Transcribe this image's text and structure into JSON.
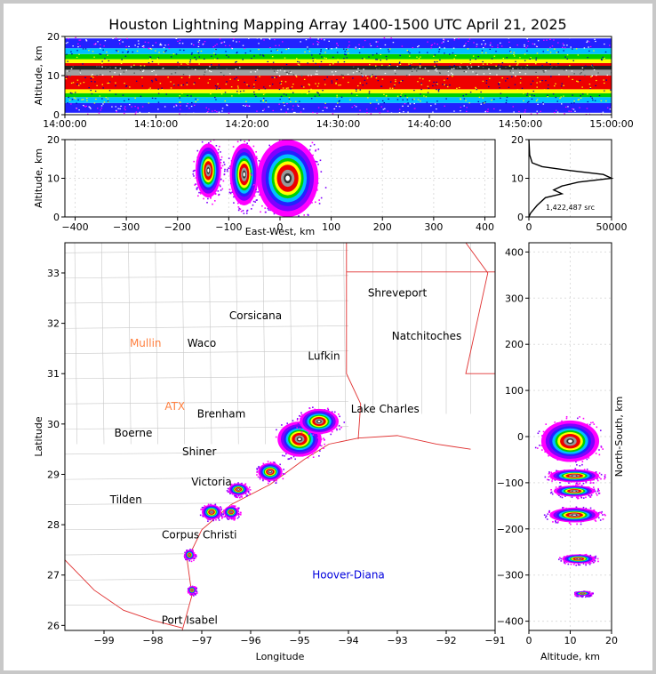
{
  "title": "Houston Lightning Mapping Array 1400-1500 UTC April 21, 2025",
  "chart_data": [
    {
      "id": "time-height",
      "type": "heatmap",
      "ylabel": "Altitude, km",
      "ylim": [
        0,
        20
      ],
      "yticks": [
        "0",
        "10",
        "20"
      ],
      "xticks": [
        "14:00:00",
        "14:10:00",
        "14:20:00",
        "14:30:00",
        "14:40:00",
        "14:50:00",
        "15:00:00"
      ],
      "bands": [
        {
          "alt": [
            0.5,
            3
          ],
          "color": "#2222ff"
        },
        {
          "alt": [
            3,
            4.5
          ],
          "color": "#00c0ff"
        },
        {
          "alt": [
            4.5,
            5.5
          ],
          "color": "#00d000"
        },
        {
          "alt": [
            5.5,
            6.5
          ],
          "color": "#ffff00"
        },
        {
          "alt": [
            6.5,
            10
          ],
          "color": "#ee0000"
        },
        {
          "alt": [
            10,
            11.5
          ],
          "color": "#a0a0a0"
        },
        {
          "alt": [
            11.5,
            12.5
          ],
          "color": "#222222"
        },
        {
          "alt": [
            12.5,
            13.2
          ],
          "color": "#ee0000"
        },
        {
          "alt": [
            13.2,
            14.2
          ],
          "color": "#ffff00"
        },
        {
          "alt": [
            14.2,
            15.5
          ],
          "color": "#00d000"
        },
        {
          "alt": [
            15.5,
            17
          ],
          "color": "#00c0ff"
        },
        {
          "alt": [
            17,
            19.5
          ],
          "color": "#2222ff"
        }
      ]
    },
    {
      "id": "ew-altitude",
      "type": "heatmap",
      "xlabel": "East-West, km",
      "ylabel": "Altitude, km",
      "xlim": [
        -420,
        420
      ],
      "ylim": [
        0,
        20
      ],
      "xticks": [
        "−400",
        "−300",
        "−200",
        "−100",
        "0",
        "100",
        "200",
        "300",
        "400"
      ],
      "yticks": [
        "0",
        "10",
        "20"
      ],
      "cells": [
        {
          "x": -140,
          "alt": 12,
          "rx": 25,
          "ry": 7
        },
        {
          "x": -70,
          "alt": 11,
          "rx": 28,
          "ry": 8
        },
        {
          "x": 15,
          "alt": 10,
          "rx": 60,
          "ry": 10
        }
      ]
    },
    {
      "id": "altitude-histogram",
      "type": "line",
      "xlim": [
        0,
        50000
      ],
      "ylim": [
        0,
        20
      ],
      "xticks": [
        "0",
        "50000"
      ],
      "yticks": [
        "0",
        "10",
        "20"
      ],
      "annotation": "1,422,487 src",
      "x": [
        0,
        1000,
        5000,
        10000,
        20000,
        15000,
        20000,
        30000,
        50000,
        45000,
        25000,
        8000,
        2000,
        500,
        0
      ],
      "y": [
        0,
        1,
        3,
        5,
        6,
        7,
        8,
        9,
        10,
        11,
        12,
        13,
        14,
        16,
        20
      ]
    },
    {
      "id": "plan-view",
      "type": "scatter",
      "xlabel": "Longitude",
      "ylabel": "Latitude",
      "xlim": [
        -99.8,
        -91
      ],
      "ylim": [
        25.9,
        33.6
      ],
      "xticks": [
        "−99",
        "−98",
        "−97",
        "−96",
        "−95",
        "−94",
        "−93",
        "−92",
        "−91"
      ],
      "yticks": [
        "26",
        "27",
        "28",
        "29",
        "30",
        "31",
        "32",
        "33"
      ],
      "cities": [
        {
          "name": "Shreveport",
          "lon": -93.0,
          "lat": 32.6,
          "color": "#000000"
        },
        {
          "name": "Corsicana",
          "lon": -95.9,
          "lat": 32.15,
          "color": "#000000"
        },
        {
          "name": "Natchitoches",
          "lon": -92.4,
          "lat": 31.75,
          "color": "#000000"
        },
        {
          "name": "Mullin",
          "lon": -98.15,
          "lat": 31.6,
          "color": "#ff8040"
        },
        {
          "name": "Waco",
          "lon": -97.0,
          "lat": 31.6,
          "color": "#000000"
        },
        {
          "name": "Lufkin",
          "lon": -94.5,
          "lat": 31.35,
          "color": "#000000"
        },
        {
          "name": "ATX",
          "lon": -97.55,
          "lat": 30.35,
          "color": "#ff8040"
        },
        {
          "name": "Brenham",
          "lon": -96.6,
          "lat": 30.2,
          "color": "#000000"
        },
        {
          "name": "Lake Charles",
          "lon": -93.25,
          "lat": 30.3,
          "color": "#000000"
        },
        {
          "name": "Boerne",
          "lon": -98.4,
          "lat": 29.82,
          "color": "#000000"
        },
        {
          "name": "Shiner",
          "lon": -97.05,
          "lat": 29.45,
          "color": "#000000"
        },
        {
          "name": "Victoria",
          "lon": -96.8,
          "lat": 28.85,
          "color": "#000000"
        },
        {
          "name": "Tilden",
          "lon": -98.55,
          "lat": 28.5,
          "color": "#000000"
        },
        {
          "name": "Corpus Christi",
          "lon": -97.05,
          "lat": 27.8,
          "color": "#000000"
        },
        {
          "name": "Hoover-Diana",
          "lon": -94.0,
          "lat": 27.0,
          "color": "#0000dd"
        },
        {
          "name": "Port Isabel",
          "lon": -97.25,
          "lat": 26.1,
          "color": "#000000"
        }
      ],
      "storms": [
        {
          "lon": -95.0,
          "lat": 29.7,
          "rx": 0.45,
          "ry": 0.35
        },
        {
          "lon": -94.6,
          "lat": 30.05,
          "rx": 0.4,
          "ry": 0.25
        },
        {
          "lon": -95.6,
          "lat": 29.05,
          "rx": 0.25,
          "ry": 0.18
        },
        {
          "lon": -96.25,
          "lat": 28.7,
          "rx": 0.2,
          "ry": 0.12
        },
        {
          "lon": -96.4,
          "lat": 28.25,
          "rx": 0.15,
          "ry": 0.12
        },
        {
          "lon": -96.8,
          "lat": 28.25,
          "rx": 0.2,
          "ry": 0.15
        },
        {
          "lon": -97.25,
          "lat": 27.4,
          "rx": 0.1,
          "ry": 0.1
        },
        {
          "lon": -97.2,
          "lat": 26.7,
          "rx": 0.08,
          "ry": 0.08
        }
      ]
    },
    {
      "id": "ns-altitude",
      "type": "heatmap",
      "xlabel": "Altitude, km",
      "ylabel": "North-South, km",
      "xlim": [
        0,
        20
      ],
      "ylim": [
        -420,
        420
      ],
      "xticks": [
        "0",
        "10",
        "20"
      ],
      "yticks": [
        "−400",
        "−300",
        "−200",
        "−100",
        "0",
        "100",
        "200",
        "300",
        "400"
      ],
      "cells": [
        {
          "alt": 10,
          "ns": -10,
          "rx": 7,
          "ry": 45
        },
        {
          "alt": 11,
          "ns": -85,
          "rx": 6,
          "ry": 14
        },
        {
          "alt": 11,
          "ns": -118,
          "rx": 5,
          "ry": 12
        },
        {
          "alt": 11,
          "ns": -170,
          "rx": 6,
          "ry": 16
        },
        {
          "alt": 12,
          "ns": -265,
          "rx": 4,
          "ry": 10
        },
        {
          "alt": 13,
          "ns": -340,
          "rx": 2,
          "ry": 5
        }
      ]
    }
  ]
}
